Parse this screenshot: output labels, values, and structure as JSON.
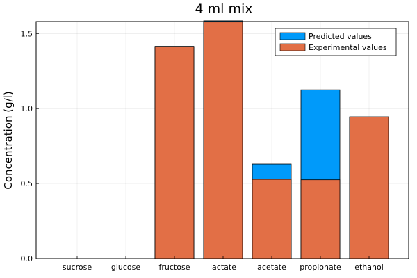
{
  "chart_data": {
    "type": "bar",
    "title": "4 ml mix",
    "xlabel": "",
    "ylabel": "Concentration (g/l)",
    "categories": [
      "sucrose",
      "glucose",
      "fructose",
      "lactate",
      "acetate",
      "propionate",
      "ethanol"
    ],
    "ylim": [
      0,
      1.58
    ],
    "yticks": [
      0.0,
      0.5,
      1.0,
      1.5
    ],
    "ytick_labels": [
      "0.0",
      "0.5",
      "1.0",
      "1.5"
    ],
    "grid": true,
    "legend_position": "top-right",
    "series": [
      {
        "name": "Predicted values",
        "color": "#009AFA",
        "values": [
          0,
          0,
          1.41,
          1.585,
          0.63,
          1.125,
          0.94
        ]
      },
      {
        "name": "Experimental values",
        "color": "#E26F46",
        "values": [
          0,
          0,
          1.415,
          1.577,
          0.528,
          0.525,
          0.945
        ]
      }
    ]
  }
}
